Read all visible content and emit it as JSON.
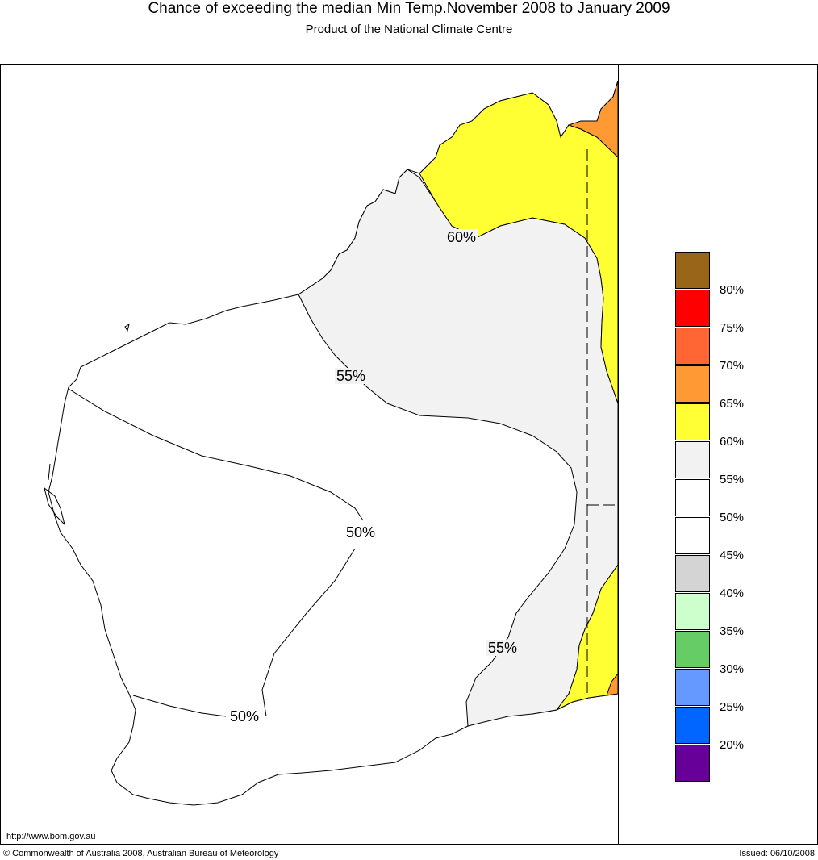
{
  "header": {
    "title": "Chance of exceeding the median Min Temp.November 2008 to January 2009",
    "subtitle": "Product of the National Climate Centre"
  },
  "map": {
    "contour_labels": [
      {
        "text": "60%",
        "zone": "on-yellow-edge"
      },
      {
        "text": "55%",
        "zone": "north"
      },
      {
        "text": "50%",
        "zone": "centre"
      },
      {
        "text": "55%",
        "zone": "south-east"
      },
      {
        "text": "50%",
        "zone": "south"
      }
    ],
    "colors": {
      "band_50_55": "#ffffff",
      "band_55_60": "#f2f2f2",
      "band_60_65": "#ffff33",
      "band_65_70": "#ff9933"
    }
  },
  "legend": {
    "swatches": [
      {
        "color": "#996619"
      },
      {
        "color": "#ff0000"
      },
      {
        "color": "#ff6633"
      },
      {
        "color": "#ff9933"
      },
      {
        "color": "#ffff33"
      },
      {
        "color": "#f2f2f2"
      },
      {
        "color": "#ffffff"
      },
      {
        "color": "#ffffff"
      },
      {
        "color": "#d4d4d4"
      },
      {
        "color": "#ccffcc"
      },
      {
        "color": "#66cc66"
      },
      {
        "color": "#6699ff"
      },
      {
        "color": "#0066ff"
      },
      {
        "color": "#660099"
      }
    ],
    "labels": [
      "80%",
      "75%",
      "70%",
      "65%",
      "60%",
      "55%",
      "50%",
      "45%",
      "40%",
      "35%",
      "30%",
      "25%",
      "20%"
    ]
  },
  "footer": {
    "url": "http://www.bom.gov.au",
    "copyright": "© Commonwealth of Australia 2008, Australian Bureau of Meteorology",
    "issued": "Issued: 06/10/2008"
  }
}
